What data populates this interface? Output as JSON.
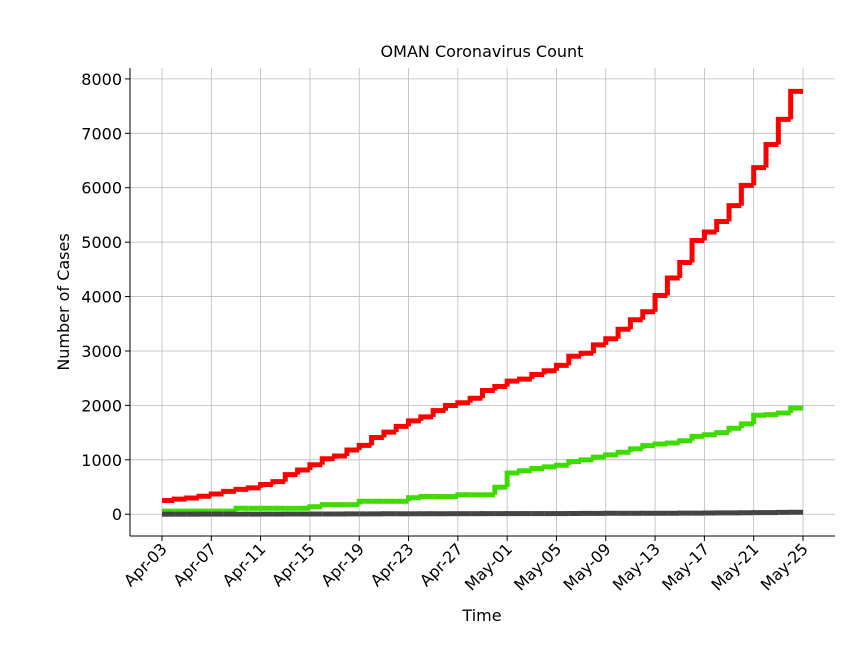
{
  "chart_data": {
    "type": "line",
    "step": "post",
    "title": "OMAN Coronavirus Count",
    "xlabel": "Time",
    "ylabel": "Number of Cases",
    "categories": [
      "Apr-03",
      null,
      null,
      null,
      "Apr-07",
      null,
      null,
      null,
      "Apr-11",
      null,
      null,
      null,
      "Apr-15",
      null,
      null,
      null,
      "Apr-19",
      null,
      null,
      null,
      "Apr-23",
      null,
      null,
      null,
      "Apr-27",
      null,
      null,
      null,
      "May-01",
      null,
      null,
      null,
      "May-05",
      null,
      null,
      null,
      "May-09",
      null,
      null,
      null,
      "May-13",
      null,
      null,
      null,
      "May-17",
      null,
      null,
      null,
      "May-21",
      null,
      null,
      null,
      "May-25"
    ],
    "series": [
      {
        "color": "#ff0000",
        "values": [
          252,
          277,
          298,
          331,
          371,
          419,
          457,
          484,
          546,
          599,
          727,
          813,
          910,
          1019,
          1069,
          1180,
          1266,
          1410,
          1508,
          1614,
          1716,
          1790,
          1905,
          1998,
          2049,
          2131,
          2274,
          2348,
          2447,
          2483,
          2568,
          2637,
          2735,
          2903,
          2958,
          3112,
          3224,
          3399,
          3573,
          3721,
          4019,
          4341,
          4625,
          5029,
          5186,
          5379,
          5671,
          6043,
          6370,
          6794,
          7257,
          7770,
          7770
        ]
      },
      {
        "color": "#3ddc00",
        "values": [
          57,
          57,
          57,
          57,
          57,
          57,
          109,
          109,
          109,
          109,
          109,
          109,
          138,
          176,
          176,
          176,
          238,
          238,
          238,
          238,
          304,
          325,
          325,
          325,
          357,
          357,
          357,
          495,
          757,
          800,
          840,
          870,
          900,
          970,
          1000,
          1050,
          1090,
          1140,
          1200,
          1260,
          1290,
          1310,
          1350,
          1430,
          1460,
          1500,
          1580,
          1660,
          1820,
          1830,
          1860,
          1950,
          1950
        ]
      },
      {
        "color": "#444444",
        "values": [
          1,
          1,
          1,
          2,
          2,
          2,
          2,
          3,
          3,
          3,
          4,
          4,
          4,
          4,
          4,
          6,
          6,
          7,
          8,
          8,
          8,
          9,
          10,
          10,
          10,
          10,
          11,
          11,
          12,
          12,
          12,
          12,
          12,
          13,
          15,
          15,
          17,
          17,
          17,
          18,
          18,
          18,
          20,
          20,
          22,
          24,
          25,
          28,
          30,
          30,
          33,
          36,
          37
        ]
      }
    ],
    "ylim": [
      -400,
      8200
    ],
    "yticks": [
      0,
      1000,
      2000,
      3000,
      4000,
      5000,
      6000,
      7000,
      8000
    ],
    "grid": true
  }
}
